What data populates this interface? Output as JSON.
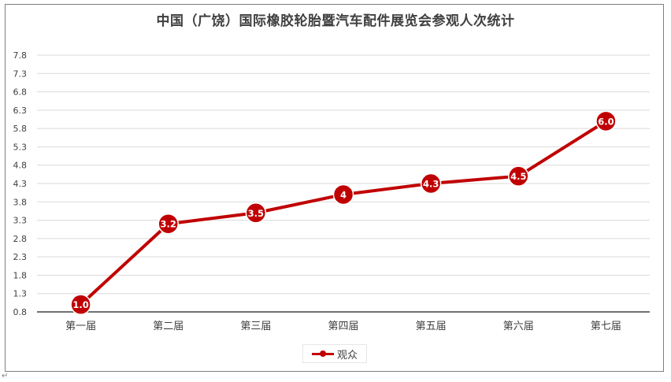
{
  "chart_data": {
    "type": "line",
    "title": "中国（广饶）国际橡胶轮胎暨汽车配件展览会参观人次统计",
    "categories": [
      "第一届",
      "第二届",
      "第三届",
      "第四届",
      "第五届",
      "第六届",
      "第七届"
    ],
    "series": [
      {
        "name": "观众",
        "values": [
          1.0,
          3.2,
          3.5,
          4,
          4.3,
          4.5,
          6.0
        ],
        "labels": [
          "1.0",
          "3.2",
          "3.5",
          "4",
          "4.3",
          "4.5",
          "6.0"
        ],
        "color": "#c00000"
      }
    ],
    "yticks": [
      "0.8",
      "1.3",
      "1.8",
      "2.3",
      "2.8",
      "3.3",
      "3.8",
      "4.3",
      "4.8",
      "5.3",
      "5.8",
      "6.3",
      "6.8",
      "7.3",
      "7.8"
    ],
    "ylim": [
      0.8,
      7.8
    ],
    "grid": true,
    "legend_position": "bottom"
  },
  "return_mark": "↵"
}
